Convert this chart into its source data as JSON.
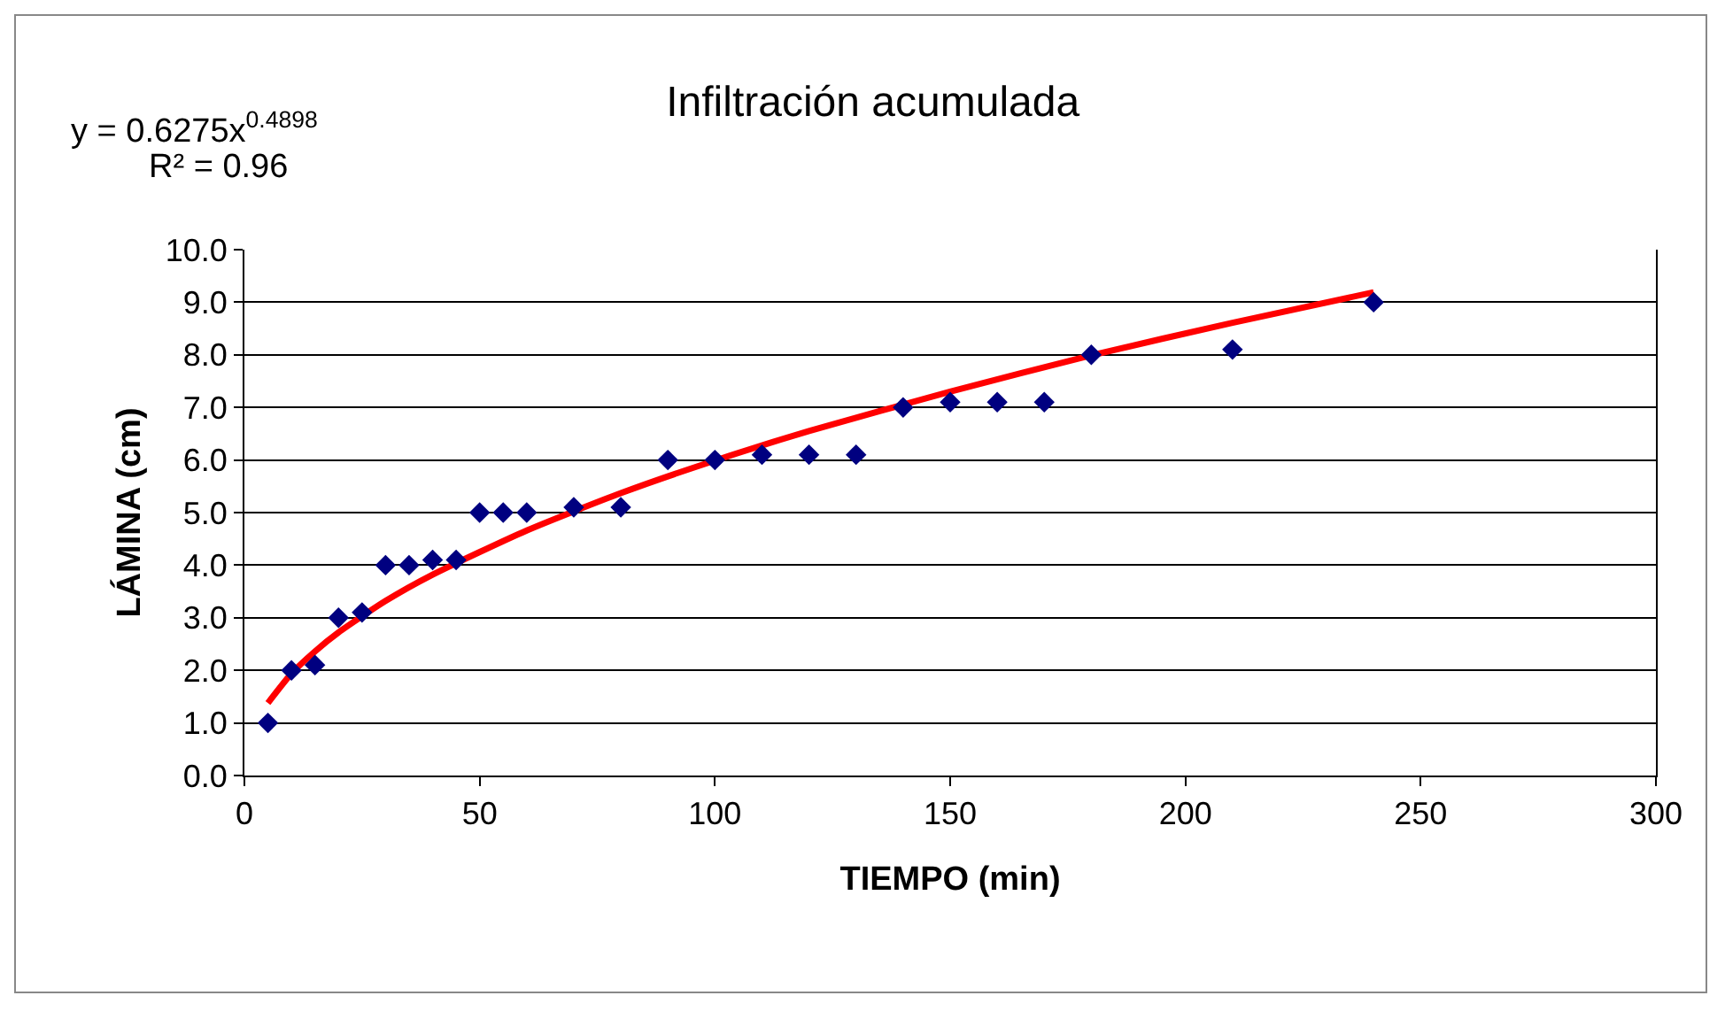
{
  "chart_data": {
    "type": "scatter",
    "title": "Infiltración acumulada",
    "xlabel": "TIEMPO (min)",
    "ylabel": "LÁMINA (cm)",
    "annotations": [
      "y = 0.6275x$^{0.4898}$",
      "R² = 0.96"
    ],
    "series": [
      {
        "type": "scatter",
        "color": "#000080",
        "marker": "diamond",
        "x": [
          5,
          10,
          15,
          20,
          25,
          30,
          35,
          40,
          45,
          50,
          55,
          60,
          70,
          80,
          90,
          100,
          110,
          120,
          130,
          140,
          150,
          160,
          170,
          180,
          210,
          240
        ],
        "values": [
          1.0,
          2.0,
          2.1,
          3.0,
          3.1,
          4.0,
          4.0,
          4.1,
          4.1,
          5.0,
          5.0,
          5.0,
          5.1,
          5.1,
          6.0,
          6.0,
          6.1,
          6.1,
          6.1,
          7.0,
          7.1,
          7.1,
          7.1,
          8.0,
          8.1,
          9.0
        ]
      },
      {
        "type": "line",
        "color": "#ff0000",
        "marker": "none",
        "line_style": "solid",
        "x": [
          5,
          10,
          15,
          20,
          30,
          40,
          60,
          80,
          100,
          120,
          150,
          180,
          210,
          240
        ],
        "values": [
          1.38,
          1.94,
          2.36,
          2.72,
          3.32,
          3.82,
          4.66,
          5.37,
          5.99,
          6.55,
          7.3,
          7.99,
          8.61,
          9.19
        ]
      }
    ],
    "xlim": [
      0,
      300
    ],
    "xticks": [
      0,
      50,
      100,
      150,
      200,
      250,
      300
    ],
    "ylim": [
      0,
      10
    ],
    "yticks": [
      {
        "value": 0,
        "label": "0.0"
      },
      {
        "value": 1,
        "label": "1.0"
      },
      {
        "value": 2,
        "label": "2.0"
      },
      {
        "value": 3,
        "label": "3.0"
      },
      {
        "value": 4,
        "label": "4.0"
      },
      {
        "value": 5,
        "label": "5.0"
      },
      {
        "value": 6,
        "label": "6.0"
      },
      {
        "value": 7,
        "label": "7.0"
      },
      {
        "value": 8,
        "label": "8.0"
      },
      {
        "value": 9,
        "label": "9.0"
      },
      {
        "value": 10,
        "label": "10.0"
      }
    ],
    "grid": "y"
  }
}
